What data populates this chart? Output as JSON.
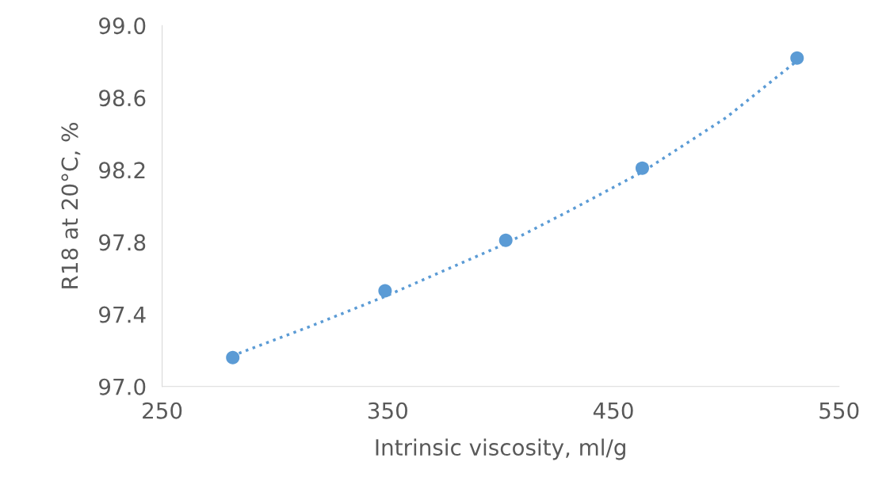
{
  "chart_data": {
    "type": "scatter",
    "xlabel": "Intrinsic viscosity, ml/g",
    "ylabel": "R18 at 20°C, %",
    "xlim": [
      250,
      550
    ],
    "xticks": [
      250,
      350,
      450,
      550
    ],
    "ylim": [
      97.0,
      99.0
    ],
    "yticks": [
      {
        "value": 97.0,
        "label": "97.0"
      },
      {
        "value": 97.4,
        "label": "97.4"
      },
      {
        "value": 97.8,
        "label": "97.8"
      },
      {
        "value": 98.2,
        "label": "98.2"
      },
      {
        "value": 98.6,
        "label": "98.6"
      },
      {
        "value": 99.0,
        "label": "99.0"
      }
    ],
    "grid": false,
    "marker": "circle",
    "series": [
      {
        "color": "#5b9bd5",
        "x": [
          281.3,
          348.8,
          402.3,
          462.8,
          531.4
        ],
        "values": [
          97.16,
          97.53,
          97.81,
          98.21,
          98.82
        ]
      },
      {
        "type": "line",
        "color": "#5b9bd5",
        "line_style": "dotted",
        "marker": "none",
        "x": [
          281,
          315,
          349,
          402,
          430,
          463,
          500,
          531
        ],
        "values": [
          97.17,
          97.33,
          97.5,
          97.79,
          97.97,
          98.19,
          98.49,
          98.8
        ]
      }
    ]
  }
}
